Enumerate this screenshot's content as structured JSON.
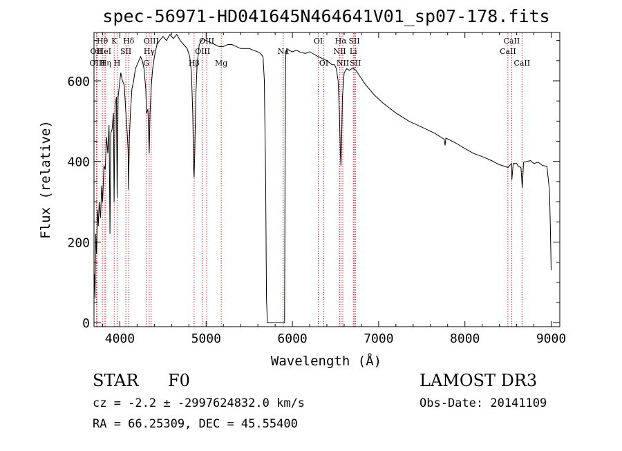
{
  "chart_data": {
    "type": "line",
    "title": "spec-56971-HD041645N464641V01_sp07-178.fits",
    "xlabel": "Wavelength (Å)",
    "ylabel": "Flux (relative)",
    "xlim": [
      3700,
      9100
    ],
    "ylim": [
      -10,
      720
    ],
    "x_ticks": [
      4000,
      5000,
      6000,
      7000,
      8000,
      9000
    ],
    "y_ticks": [
      0,
      200,
      400,
      600
    ],
    "x_tick_labels": [
      "4000",
      "5000",
      "6000",
      "7000",
      "8000",
      "9000"
    ],
    "y_tick_labels": [
      "0",
      "200",
      "400",
      "600"
    ],
    "series": [
      {
        "name": "flux",
        "points": [
          [
            3705,
            120
          ],
          [
            3712,
            60
          ],
          [
            3720,
            220
          ],
          [
            3730,
            170
          ],
          [
            3740,
            280
          ],
          [
            3750,
            240
          ],
          [
            3760,
            300
          ],
          [
            3775,
            260
          ],
          [
            3790,
            340
          ],
          [
            3800,
            300
          ],
          [
            3815,
            390
          ],
          [
            3830,
            380
          ],
          [
            3845,
            460
          ],
          [
            3860,
            420
          ],
          [
            3875,
            490
          ],
          [
            3885,
            220
          ],
          [
            3895,
            470
          ],
          [
            3910,
            480
          ],
          [
            3925,
            520
          ],
          [
            3933,
            300
          ],
          [
            3945,
            540
          ],
          [
            3960,
            560
          ],
          [
            3968,
            310
          ],
          [
            3980,
            560
          ],
          [
            3995,
            590
          ],
          [
            4010,
            620
          ],
          [
            4030,
            600
          ],
          [
            4050,
            590
          ],
          [
            4070,
            520
          ],
          [
            4085,
            470
          ],
          [
            4095,
            430
          ],
          [
            4101,
            330
          ],
          [
            4110,
            460
          ],
          [
            4125,
            530
          ],
          [
            4140,
            580
          ],
          [
            4160,
            600
          ],
          [
            4180,
            630
          ],
          [
            4200,
            640
          ],
          [
            4220,
            650
          ],
          [
            4240,
            660
          ],
          [
            4260,
            650
          ],
          [
            4280,
            630
          ],
          [
            4300,
            580
          ],
          [
            4310,
            520
          ],
          [
            4325,
            530
          ],
          [
            4340,
            420
          ],
          [
            4350,
            520
          ],
          [
            4365,
            590
          ],
          [
            4380,
            630
          ],
          [
            4400,
            660
          ],
          [
            4430,
            690
          ],
          [
            4460,
            700
          ],
          [
            4500,
            710
          ],
          [
            4540,
            700
          ],
          [
            4580,
            715
          ],
          [
            4620,
            705
          ],
          [
            4660,
            715
          ],
          [
            4700,
            700
          ],
          [
            4740,
            690
          ],
          [
            4780,
            680
          ],
          [
            4810,
            660
          ],
          [
            4830,
            620
          ],
          [
            4845,
            520
          ],
          [
            4855,
            380
          ],
          [
            4861,
            360
          ],
          [
            4868,
            420
          ],
          [
            4880,
            560
          ],
          [
            4895,
            640
          ],
          [
            4920,
            690
          ],
          [
            4960,
            705
          ],
          [
            5000,
            700
          ],
          [
            5050,
            695
          ],
          [
            5100,
            690
          ],
          [
            5150,
            685
          ],
          [
            5200,
            685
          ],
          [
            5250,
            690
          ],
          [
            5300,
            690
          ],
          [
            5350,
            685
          ],
          [
            5400,
            680
          ],
          [
            5450,
            680
          ],
          [
            5500,
            680
          ],
          [
            5560,
            675
          ],
          [
            5620,
            670
          ],
          [
            5660,
            660
          ],
          [
            5675,
            600
          ],
          [
            5690,
            350
          ],
          [
            5700,
            60
          ],
          [
            5710,
            0
          ],
          [
            5720,
            0
          ],
          [
            5735,
            0
          ],
          [
            5900,
            0
          ],
          [
            5910,
            0
          ],
          [
            5915,
            420
          ],
          [
            5918,
            550
          ],
          [
            5922,
            660
          ],
          [
            5935,
            680
          ],
          [
            5970,
            675
          ],
          [
            6000,
            672
          ],
          [
            6050,
            676
          ],
          [
            6100,
            670
          ],
          [
            6150,
            668
          ],
          [
            6200,
            672
          ],
          [
            6250,
            666
          ],
          [
            6300,
            660
          ],
          [
            6350,
            655
          ],
          [
            6400,
            650
          ],
          [
            6430,
            645
          ],
          [
            6460,
            640
          ],
          [
            6490,
            640
          ],
          [
            6510,
            630
          ],
          [
            6530,
            600
          ],
          [
            6545,
            520
          ],
          [
            6556,
            420
          ],
          [
            6563,
            390
          ],
          [
            6570,
            440
          ],
          [
            6580,
            560
          ],
          [
            6600,
            620
          ],
          [
            6630,
            630
          ],
          [
            6660,
            626
          ],
          [
            6700,
            632
          ],
          [
            6740,
            625
          ],
          [
            6780,
            612
          ],
          [
            6850,
            590
          ],
          [
            6950,
            565
          ],
          [
            7050,
            545
          ],
          [
            7200,
            520
          ],
          [
            7350,
            500
          ],
          [
            7500,
            485
          ],
          [
            7650,
            470
          ],
          [
            7760,
            455
          ],
          [
            7770,
            440
          ],
          [
            7780,
            458
          ],
          [
            7900,
            445
          ],
          [
            8000,
            432
          ],
          [
            8100,
            420
          ],
          [
            8200,
            412
          ],
          [
            8300,
            403
          ],
          [
            8400,
            392
          ],
          [
            8500,
            385
          ],
          [
            8540,
            395
          ],
          [
            8545,
            355
          ],
          [
            8560,
            395
          ],
          [
            8600,
            395
          ],
          [
            8618,
            388
          ],
          [
            8650,
            385
          ],
          [
            8665,
            335
          ],
          [
            8680,
            398
          ],
          [
            8720,
            400
          ],
          [
            8760,
            402
          ],
          [
            8800,
            395
          ],
          [
            8850,
            398
          ],
          [
            8900,
            390
          ],
          [
            8950,
            388
          ],
          [
            8980,
            330
          ],
          [
            8990,
            240
          ],
          [
            9000,
            130
          ]
        ]
      }
    ],
    "line_markers": [
      {
        "name": "OII",
        "wavelength": 3727,
        "row": 2
      },
      {
        "name": "OIII",
        "wavelength": 3737,
        "row": 3
      },
      {
        "name": "Hθ",
        "wavelength": 3797,
        "row": 1
      },
      {
        "name": "HeI",
        "wavelength": 3819,
        "row": 2
      },
      {
        "name": "Hη",
        "wavelength": 3835,
        "row": 3
      },
      {
        "name": "K",
        "wavelength": 3934,
        "row": 1
      },
      {
        "name": "SII",
        "wavelength": 4069,
        "row": 2
      },
      {
        "name": "H",
        "wavelength": 3969,
        "row": 3
      },
      {
        "name": "Hδ",
        "wavelength": 4102,
        "row": 1
      },
      {
        "name": "OIII",
        "wavelength": 4363,
        "row": 1
      },
      {
        "name": "Hγ",
        "wavelength": 4340,
        "row": 2
      },
      {
        "name": "G",
        "wavelength": 4305,
        "row": 3
      },
      {
        "name": "Hβ",
        "wavelength": 4861,
        "row": 3
      },
      {
        "name": "OIII",
        "wavelength": 4959,
        "row": 2
      },
      {
        "name": "OIII",
        "wavelength": 5007,
        "row": 1
      },
      {
        "name": "Mg",
        "wavelength": 5175,
        "row": 3
      },
      {
        "name": "Na",
        "wavelength": 5894,
        "row": 2
      },
      {
        "name": "OI",
        "wavelength": 6300,
        "row": 1
      },
      {
        "name": "OI",
        "wavelength": 6364,
        "row": 3
      },
      {
        "name": "Hα",
        "wavelength": 6563,
        "row": 1
      },
      {
        "name": "NII",
        "wavelength": 6548,
        "row": 2
      },
      {
        "name": "NII",
        "wavelength": 6584,
        "row": 3
      },
      {
        "name": "SII",
        "wavelength": 6717,
        "row": 1
      },
      {
        "name": "Li",
        "wavelength": 6707,
        "row": 2
      },
      {
        "name": "SII",
        "wavelength": 6731,
        "row": 3
      },
      {
        "name": "CaII",
        "wavelength": 8542,
        "row": 1
      },
      {
        "name": "CaII",
        "wavelength": 8498,
        "row": 2
      },
      {
        "name": "CaII",
        "wavelength": 8662,
        "row": 3
      }
    ]
  },
  "info": {
    "object_type": "STAR",
    "subclass": "F0",
    "survey": "LAMOST DR3",
    "cz": "cz = -2.2 ± -2997624832.0 km/s",
    "obs_date": "Obs-Date: 20141109",
    "coords": "RA =  66.25309, DEC =  45.55400"
  },
  "colors": {
    "line": "#000000",
    "marker": "#cc0000",
    "background": "#ffffff"
  }
}
